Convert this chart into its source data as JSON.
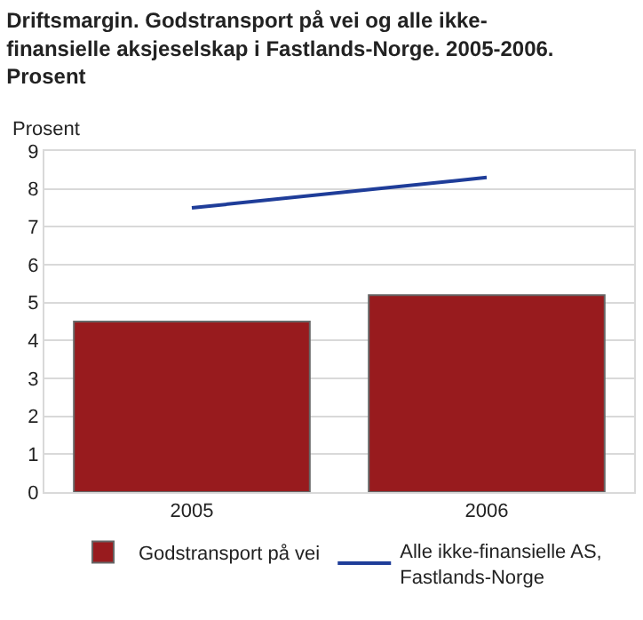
{
  "chart_data": {
    "type": "bar",
    "title": "Driftsmargin. Godstransport på vei og alle ikke-finansielle aksjeselskap i Fastlands-Norge. 2005-2006. Prosent",
    "ylabel": "Prosent",
    "categories": [
      "2005",
      "2006"
    ],
    "series": [
      {
        "name": "Godstransport på vei",
        "color": "#981b1e",
        "values": [
          4.5,
          5.2
        ]
      },
      {
        "name": "Alle ikke-finansielle AS, Fastlands-Norge",
        "type": "line",
        "color": "#1f3d99",
        "values": [
          7.5,
          8.3
        ]
      }
    ],
    "ylim": [
      0,
      9
    ],
    "yticks": [
      0,
      1,
      2,
      3,
      4,
      5,
      6,
      7,
      8,
      9
    ],
    "grid": "y",
    "legend": "bottom",
    "marker": "none"
  }
}
